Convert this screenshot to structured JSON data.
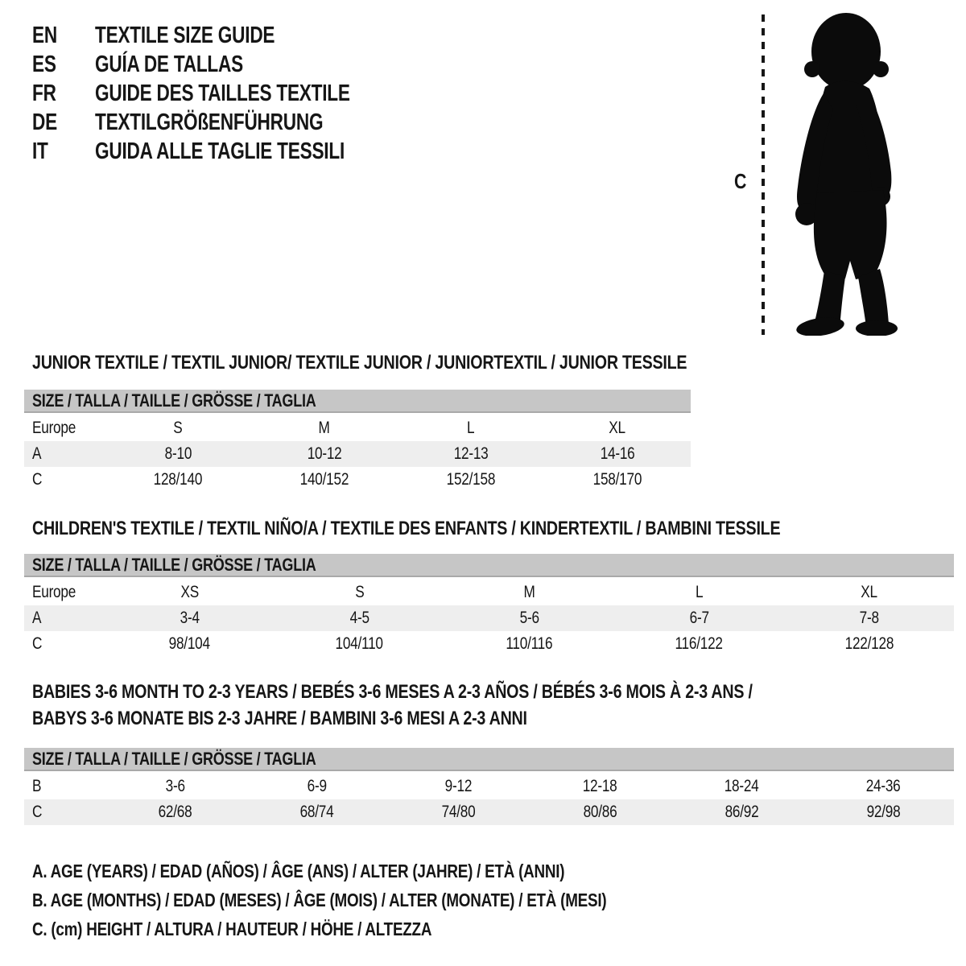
{
  "colors": {
    "text": "#161616",
    "band_bg": "#c6c6c6",
    "band_edge": "#a9a9a9",
    "row_shade": "#eeeeee",
    "silhouette": "#0b0b0b"
  },
  "languages": [
    {
      "code": "EN",
      "title": "TEXTILE SIZE GUIDE"
    },
    {
      "code": "ES",
      "title": "GUÍA DE TALLAS"
    },
    {
      "code": "FR",
      "title": "GUIDE DES TAILLES TEXTILE"
    },
    {
      "code": "DE",
      "title": "TEXTILGRÖßENFÜHRUNG"
    },
    {
      "code": "IT",
      "title": "GUIDA ALLE TAGLIE TESSILI"
    }
  ],
  "figure": {
    "icon": "baby-toddler-silhouette",
    "height_label": "C"
  },
  "sections": [
    {
      "id": "junior",
      "title_lines": [
        "JUNIOR TEXTILE / TEXTIL JUNIOR/ TEXTILE JUNIOR / JUNIORTEXTIL / JUNIOR TESSILE"
      ],
      "size_header": "SIZE / TALLA / TAILLE / GRÖSSE / TAGLIA",
      "rows": [
        {
          "label": "Europe",
          "shaded": false,
          "values": [
            "S",
            "M",
            "L",
            "XL"
          ]
        },
        {
          "label": "A",
          "shaded": true,
          "values": [
            "8-10",
            "10-12",
            "12-13",
            "14-16"
          ]
        },
        {
          "label": "C",
          "shaded": false,
          "values": [
            "128/140",
            "140/152",
            "152/158",
            "158/170"
          ]
        }
      ]
    },
    {
      "id": "children",
      "title_lines": [
        "CHILDREN'S TEXTILE / TEXTIL NIÑO/A / TEXTILE DES ENFANTS / KINDERTEXTIL / BAMBINI TESSILE"
      ],
      "size_header": "SIZE / TALLA / TAILLE / GRÖSSE / TAGLIA",
      "rows": [
        {
          "label": "Europe",
          "shaded": false,
          "values": [
            "XS",
            "S",
            "M",
            "L",
            "XL"
          ]
        },
        {
          "label": "A",
          "shaded": true,
          "values": [
            "3-4",
            "4-5",
            "5-6",
            "6-7",
            "7-8"
          ]
        },
        {
          "label": "C",
          "shaded": false,
          "values": [
            "98/104",
            "104/110",
            "110/116",
            "116/122",
            "122/128"
          ]
        }
      ]
    },
    {
      "id": "babies",
      "title_lines": [
        "BABIES 3-6 MONTH TO 2-3 YEARS / BEBÉS 3-6 MESES A 2-3 AÑOS / BÉBÉS 3-6 MOIS À 2-3 ANS /",
        "BABYS 3-6 MONATE BIS 2-3 JAHRE / BAMBINI 3-6 MESI A 2-3 ANNI"
      ],
      "size_header": "SIZE / TALLA / TAILLE / GRÖSSE / TAGLIA",
      "rows": [
        {
          "label": "B",
          "shaded": false,
          "values": [
            "3-6",
            "6-9",
            "9-12",
            "12-18",
            "18-24",
            "24-36"
          ]
        },
        {
          "label": "C",
          "shaded": true,
          "values": [
            "62/68",
            "68/74",
            "74/80",
            "80/86",
            "86/92",
            "92/98"
          ]
        }
      ]
    }
  ],
  "legend": [
    "A. AGE (YEARS) / EDAD (AÑOS) / ÂGE (ANS) / ALTER (JAHRE) / ETÀ (ANNI)",
    "B. AGE (MONTHS) / EDAD (MESES) / ÂGE (MOIS) / ALTER (MONATE) / ETÀ (MESI)",
    "C. (cm) HEIGHT / ALTURA / HAUTEUR / HÖHE / ALTEZZA"
  ]
}
